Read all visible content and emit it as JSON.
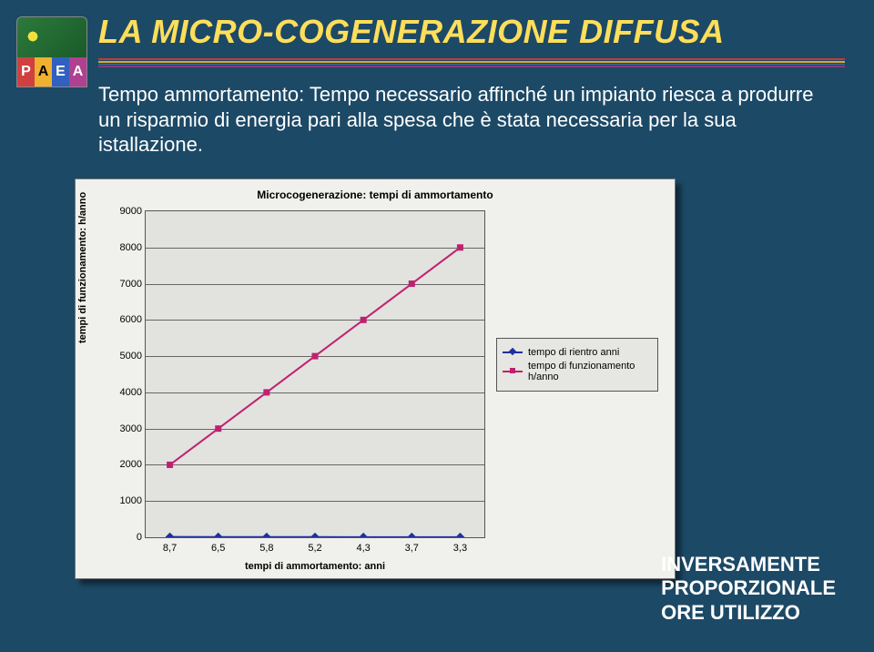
{
  "logo": {
    "letters": [
      "P",
      "A",
      "E",
      "A"
    ]
  },
  "title": "LA MICRO-COGENERAZIONE DIFFUSA",
  "body": {
    "lead": "Tempo ammortamento:",
    "rest": " Tempo necessario affinché un impianto riesca a produrre un risparmio di energia pari alla spesa che è stata necessaria per la sua istallazione."
  },
  "chart": {
    "title": "Microcogenerazione: tempi di ammortamento",
    "y_axis_title": "tempi di funzionamento: h/anno",
    "x_axis_title": "tempi di ammortamento: anni",
    "y_min": 0,
    "y_max": 9000,
    "y_step": 1000,
    "x_categories": [
      "8,7",
      "6,5",
      "5,8",
      "5,2",
      "4,3",
      "3,7",
      "3,3"
    ],
    "series": [
      {
        "name": "tempo di rientro anni",
        "color": "#2030a0",
        "marker": "diamond",
        "values": [
          8.7,
          6.5,
          5.8,
          5.2,
          4.3,
          3.7,
          3.3
        ]
      },
      {
        "name": "tempo di funzionamento h/anno",
        "color": "#c02070",
        "marker": "square",
        "values": [
          2000,
          3000,
          4000,
          5000,
          6000,
          7000,
          8000
        ]
      }
    ],
    "background": "#e2e2de",
    "grid_color": "#666666",
    "font_size": 11
  },
  "footer": {
    "line1": "INVERSAMENTE",
    "line2": "PROPORZIONALE",
    "line3": "ORE UTILIZZO"
  }
}
